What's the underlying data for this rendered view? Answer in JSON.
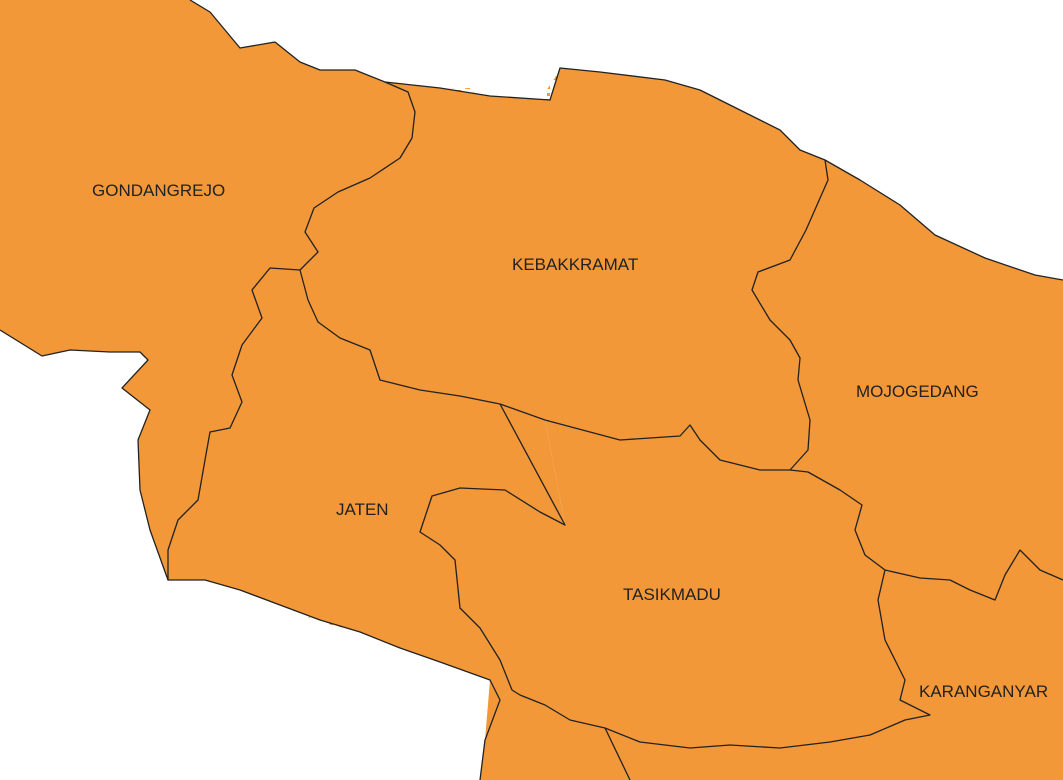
{
  "map": {
    "regions": [
      {
        "name": "GONDANGREJO"
      },
      {
        "name": "KEBAKKRAMAT"
      },
      {
        "name": "MOJOGEDANG"
      },
      {
        "name": "JATEN"
      },
      {
        "name": "TASIKMADU"
      },
      {
        "name": "KARANGANYAR"
      }
    ],
    "colors": {
      "background": "#ffffff",
      "region_fill": "#f29839",
      "highlight_fill": "#fdf56a",
      "border": "#222222"
    }
  }
}
